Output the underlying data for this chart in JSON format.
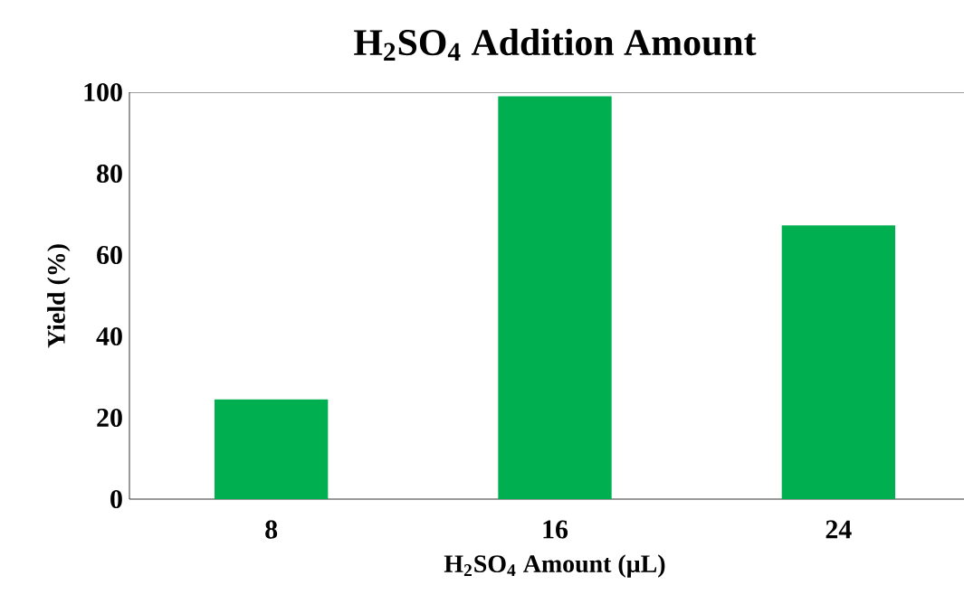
{
  "chart_data": {
    "type": "bar",
    "title": "H$_{2}$SO$_{4}$ Addition Amount",
    "xlabel": "H$_{2}$SO$_{4}$ Amount (µL)",
    "ylabel": "Yield (%)",
    "categories": [
      "8",
      "16",
      "24"
    ],
    "values": [
      24.5,
      99,
      67.3
    ],
    "color": "#00b050",
    "ylim": [
      0,
      100
    ],
    "yticks": [
      0,
      20,
      40,
      60,
      80,
      100
    ],
    "grid": false
  }
}
